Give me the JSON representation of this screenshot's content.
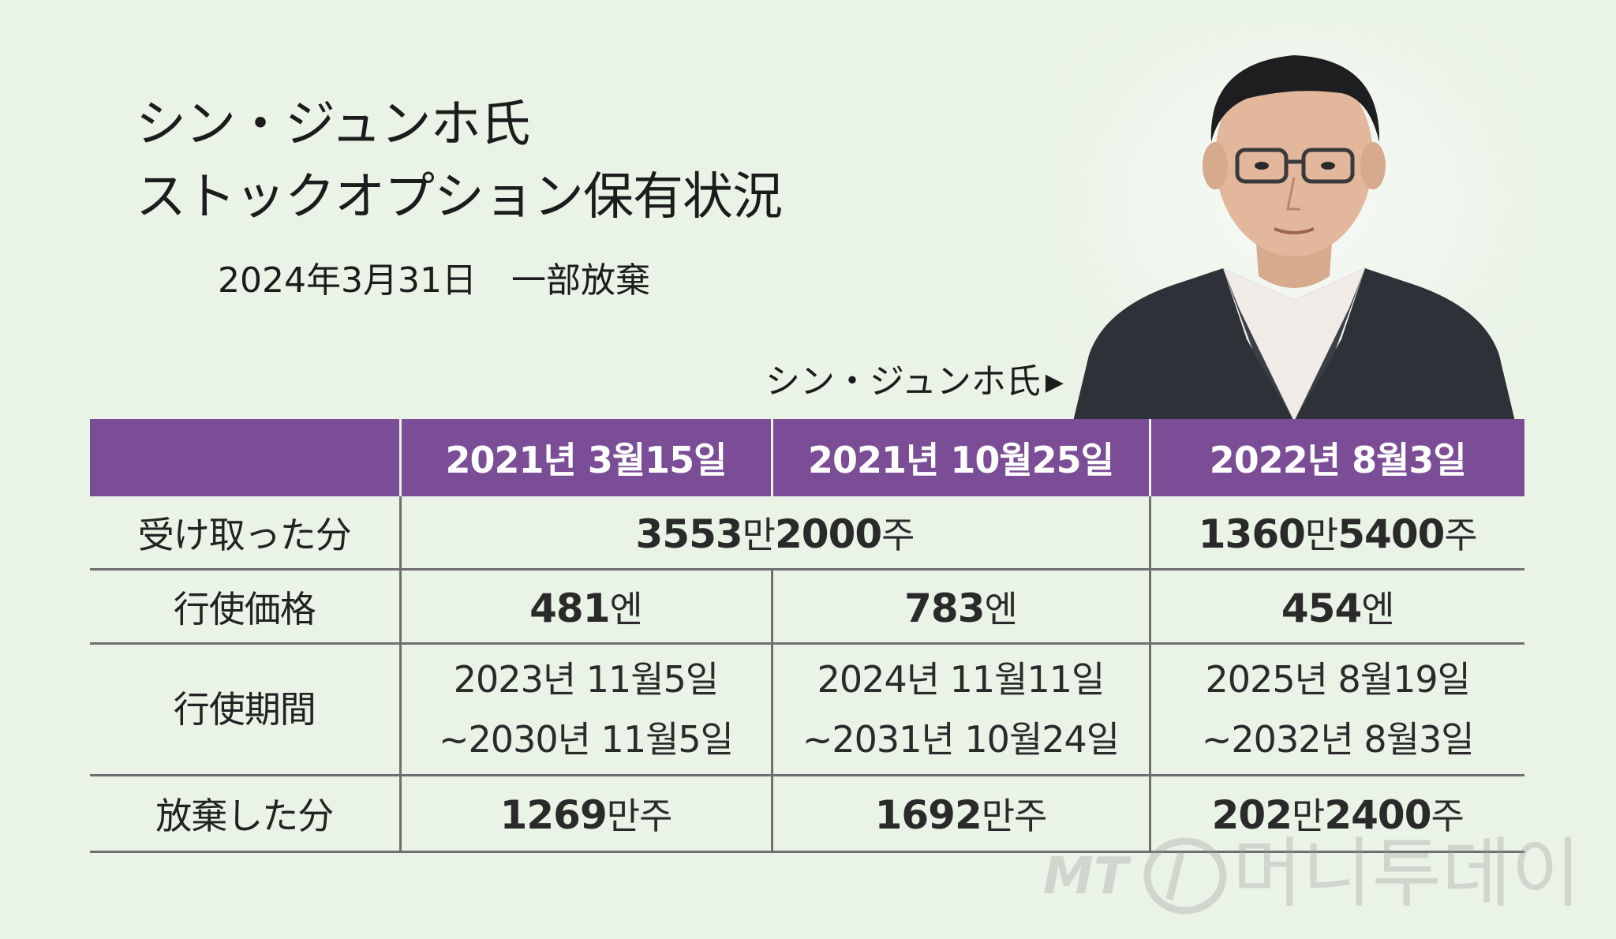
{
  "title": {
    "line1": "シン・ジュンホ氏",
    "line2": "ストックオプション保有状況"
  },
  "subtitle": "2024年3月31日　一部放棄",
  "photo_caption": {
    "label": "シン・ジュンホ氏",
    "arrow": "▶"
  },
  "table": {
    "headers": [
      "",
      "2021년 3월15일",
      "2021년 10월25일",
      "2022년 8월3일"
    ],
    "rows": {
      "received": {
        "label": "受け取った分",
        "merged": {
          "num1": "3553",
          "unit1": "만",
          "num2": "2000",
          "unit2": "주"
        },
        "col3": {
          "num1": "1360",
          "unit1": "만",
          "num2": "5400",
          "unit2": "주"
        }
      },
      "exercise_price": {
        "label": "行使価格",
        "values": [
          {
            "num": "481",
            "unit": "엔"
          },
          {
            "num": "783",
            "unit": "엔"
          },
          {
            "num": "454",
            "unit": "엔"
          }
        ]
      },
      "exercise_period": {
        "label": "行使期間",
        "values": [
          {
            "from": "2023년 11월5일",
            "to": "~2030년 11월5일"
          },
          {
            "from": "2024년 11월11일",
            "to": "~2031년 10월24일"
          },
          {
            "from": "2025년 8월19일",
            "to": "~2032년 8월3일"
          }
        ]
      },
      "forfeited": {
        "label": "放棄した分",
        "values": [
          {
            "num1": "1269",
            "unit1": "만주",
            "num2": "",
            "unit2": ""
          },
          {
            "num1": "1692",
            "unit1": "만주",
            "num2": "",
            "unit2": ""
          },
          {
            "num1": "202",
            "unit1": "만",
            "num2": "2400",
            "unit2": "주"
          }
        ]
      }
    }
  },
  "watermark": {
    "logo_text": "MT",
    "brand": "머니투데이"
  },
  "colors": {
    "background": "#e9f3e6",
    "header": "#7b4d96",
    "header_text": "#ffffff",
    "rule": "#6f6f6f"
  }
}
